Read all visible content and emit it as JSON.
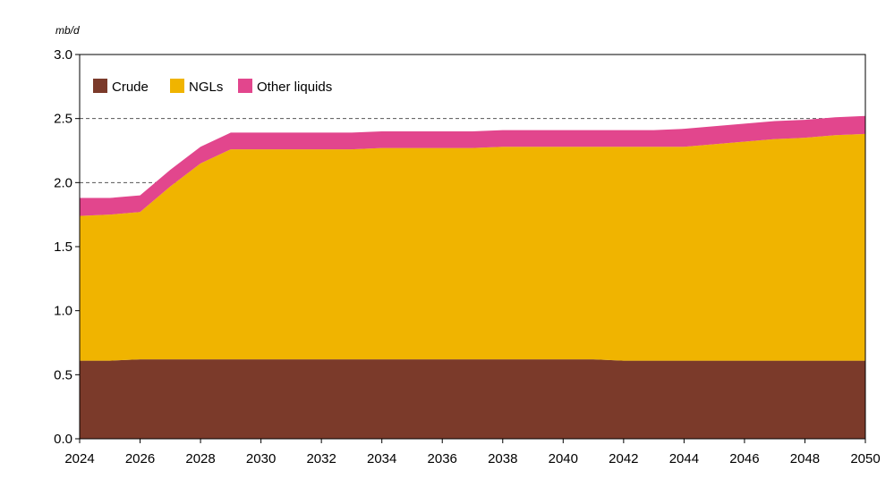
{
  "chart_data": {
    "type": "area",
    "stacked": true,
    "unit_label": "mb/d",
    "x": [
      2024,
      2025,
      2026,
      2027,
      2028,
      2029,
      2030,
      2031,
      2032,
      2033,
      2034,
      2035,
      2036,
      2037,
      2038,
      2039,
      2040,
      2041,
      2042,
      2043,
      2044,
      2045,
      2046,
      2047,
      2048,
      2049,
      2050
    ],
    "x_ticks": [
      "2024",
      "2026",
      "2028",
      "2030",
      "2032",
      "2034",
      "2036",
      "2038",
      "2040",
      "2042",
      "2044",
      "2046",
      "2048",
      "2050"
    ],
    "y_ticks": [
      "0.0",
      "0.5",
      "1.0",
      "1.5",
      "2.0",
      "2.5",
      "3.0"
    ],
    "xlim": [
      2024,
      2050
    ],
    "ylim": [
      0,
      3.0
    ],
    "reference_lines": [
      2.0,
      2.5
    ],
    "legend_position": "top-left",
    "series": [
      {
        "name": "Crude",
        "color": "#7b3a2a",
        "values": [
          0.61,
          0.61,
          0.62,
          0.62,
          0.62,
          0.62,
          0.62,
          0.62,
          0.62,
          0.62,
          0.62,
          0.62,
          0.62,
          0.62,
          0.62,
          0.62,
          0.62,
          0.62,
          0.61,
          0.61,
          0.61,
          0.61,
          0.61,
          0.61,
          0.61,
          0.61,
          0.61
        ]
      },
      {
        "name": "NGLs",
        "color": "#f0b400",
        "values": [
          1.13,
          1.14,
          1.15,
          1.35,
          1.53,
          1.64,
          1.64,
          1.64,
          1.64,
          1.64,
          1.65,
          1.65,
          1.65,
          1.65,
          1.66,
          1.66,
          1.66,
          1.66,
          1.67,
          1.67,
          1.67,
          1.69,
          1.71,
          1.73,
          1.74,
          1.76,
          1.77
        ]
      },
      {
        "name": "Other liquids",
        "color": "#e2468d",
        "values": [
          0.14,
          0.13,
          0.13,
          0.13,
          0.13,
          0.13,
          0.13,
          0.13,
          0.13,
          0.13,
          0.13,
          0.13,
          0.13,
          0.13,
          0.13,
          0.13,
          0.13,
          0.13,
          0.13,
          0.13,
          0.14,
          0.14,
          0.14,
          0.14,
          0.14,
          0.14,
          0.14
        ]
      }
    ]
  }
}
